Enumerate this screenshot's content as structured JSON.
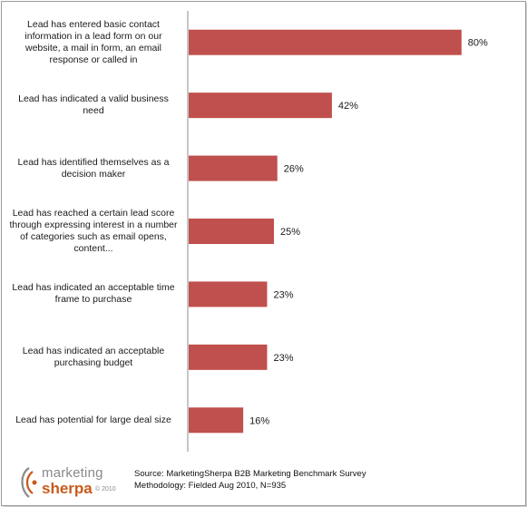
{
  "chart_data": {
    "type": "bar",
    "orientation": "horizontal",
    "categories": [
      "Lead has entered basic contact information in a lead form on our website, a mail in form, an email response or called in",
      "Lead has indicated a valid business need",
      "Lead has identified themselves as a decision maker",
      "Lead has reached a certain lead score through expressing interest in a number of categories such as email opens, content...",
      "Lead has indicated an acceptable time frame to purchase",
      "Lead has indicated an acceptable purchasing budget",
      "Lead has potential for large deal size"
    ],
    "values": [
      80,
      42,
      26,
      25,
      23,
      23,
      16
    ],
    "value_labels": [
      "80%",
      "42%",
      "26%",
      "25%",
      "23%",
      "23%",
      "16%"
    ],
    "xlim": [
      0,
      100
    ],
    "grid": false,
    "bar_color": "#c0504d",
    "axis_color": "#8c8c8c"
  },
  "footer": {
    "source_line": "Source: MarketingSherpa B2B Marketing Benchmark Survey",
    "method_line": "Methodology: Fielded Aug 2010, N=935"
  },
  "logo": {
    "top": "marketing",
    "bottom": "sherpa",
    "copyright": "© 2010",
    "color_top": "#8a8a8a",
    "color_bottom": "#c85a1a"
  }
}
